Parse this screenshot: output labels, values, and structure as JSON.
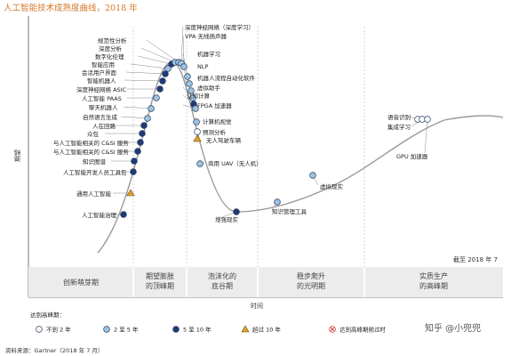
{
  "title": "人工智能技术成熟度曲线，2018 年",
  "chart_data": {
    "type": "scatter",
    "title": "人工智能技术成熟度曲线，2018 年",
    "xlabel": "时间",
    "ylabel": "期望",
    "date_note": "截至 2018 年 7",
    "phases": [
      "创新萌芽期",
      "期望膨胀的顶峰期",
      "泡沫化的底谷期",
      "稳步爬升的光明期",
      "实质生产的高峰期"
    ],
    "legend_title": "达到高峰期：",
    "legend": [
      {
        "key": "lt2",
        "label": "不到 2 年",
        "shape": "circle",
        "color": "#ffffff"
      },
      {
        "key": "2to5",
        "label": "2 至 5 年",
        "shape": "circle",
        "color": "#9ec3de"
      },
      {
        "key": "5to10",
        "label": "5 至 10 年",
        "shape": "circle",
        "color": "#1f3b73"
      },
      {
        "key": "gt10",
        "label": "超过 10 年",
        "shape": "triangle",
        "color": "#e0a030"
      },
      {
        "key": "obsolete",
        "label": "达到高峰期前过时",
        "shape": "cross",
        "color": "#d04040"
      }
    ],
    "points": [
      {
        "label": "人工智能治理",
        "cat": "5to10",
        "side": "left"
      },
      {
        "label": "通用人工智能",
        "cat": "gt10",
        "side": "left"
      },
      {
        "label": "人工智能开发人员工具包",
        "cat": "5to10",
        "side": "left"
      },
      {
        "label": "知识图谱",
        "cat": "5to10",
        "side": "left"
      },
      {
        "label": "与人工智能相关的 C&SI 服务",
        "cat": "5to10",
        "side": "left"
      },
      {
        "label": "与人工智能相关的 C&SI 服务",
        "cat": "5to10",
        "side": "left"
      },
      {
        "label": "众包",
        "cat": "5to10",
        "side": "left"
      },
      {
        "label": "人在回路",
        "cat": "5to10",
        "side": "left"
      },
      {
        "label": "自然语言生成",
        "cat": "2to5",
        "side": "left"
      },
      {
        "label": "聊天机器人",
        "cat": "2to5",
        "side": "left"
      },
      {
        "label": "人工智能 PAAS",
        "cat": "2to5",
        "side": "left"
      },
      {
        "label": "深度神经网络 ASIC",
        "cat": "5to10",
        "side": "left"
      },
      {
        "label": "智能机器人",
        "cat": "5to10",
        "side": "left"
      },
      {
        "label": "会话用户界面",
        "cat": "5to10",
        "side": "left"
      },
      {
        "label": "智能应用",
        "cat": "2to5",
        "side": "left"
      },
      {
        "label": "数字化伦理",
        "cat": "5to10",
        "side": "left"
      },
      {
        "label": "深度分析",
        "cat": "2to5",
        "side": "left"
      },
      {
        "label": "规范性分析",
        "cat": "2to5",
        "side": "left"
      },
      {
        "label": "深度神经网络（深度学习）",
        "cat": "2to5",
        "side": "right"
      },
      {
        "label": "VPA 无线扬声器",
        "cat": "2to5",
        "side": "right"
      },
      {
        "label": "机器学习",
        "cat": "2to5",
        "side": "right"
      },
      {
        "label": "NLP",
        "cat": "2to5",
        "side": "right"
      },
      {
        "label": "机器人流程自动化软件",
        "cat": "2to5",
        "side": "right"
      },
      {
        "label": "虚拟助手",
        "cat": "2to5",
        "side": "right"
      },
      {
        "label": "认知计算",
        "cat": "5to10",
        "side": "right"
      },
      {
        "label": "FPGA 加速器",
        "cat": "2to5",
        "side": "right"
      },
      {
        "label": "计算机视觉",
        "cat": "2to5",
        "side": "right"
      },
      {
        "label": "预测分析",
        "cat": "lt2",
        "side": "right"
      },
      {
        "label": "无人驾驶车辆",
        "cat": "gt10",
        "side": "right"
      },
      {
        "label": "商用 UAV（无人机）",
        "cat": "2to5",
        "side": "right"
      },
      {
        "label": "增强现实",
        "cat": "5to10",
        "side": "right"
      },
      {
        "label": "知识管理工具",
        "cat": "2to5",
        "side": "right"
      },
      {
        "label": "虚拟现实",
        "cat": "2to5",
        "side": "right"
      },
      {
        "label": "语音识别",
        "cat": "lt2",
        "side": "right"
      },
      {
        "label": "集成学习",
        "cat": "lt2",
        "side": "right"
      },
      {
        "label": "GPU 加速器",
        "cat": "lt2",
        "side": "right"
      }
    ]
  },
  "source": "资料来源：Gartner（2018 年 7 月）",
  "watermark": "知乎 @小兜兜"
}
